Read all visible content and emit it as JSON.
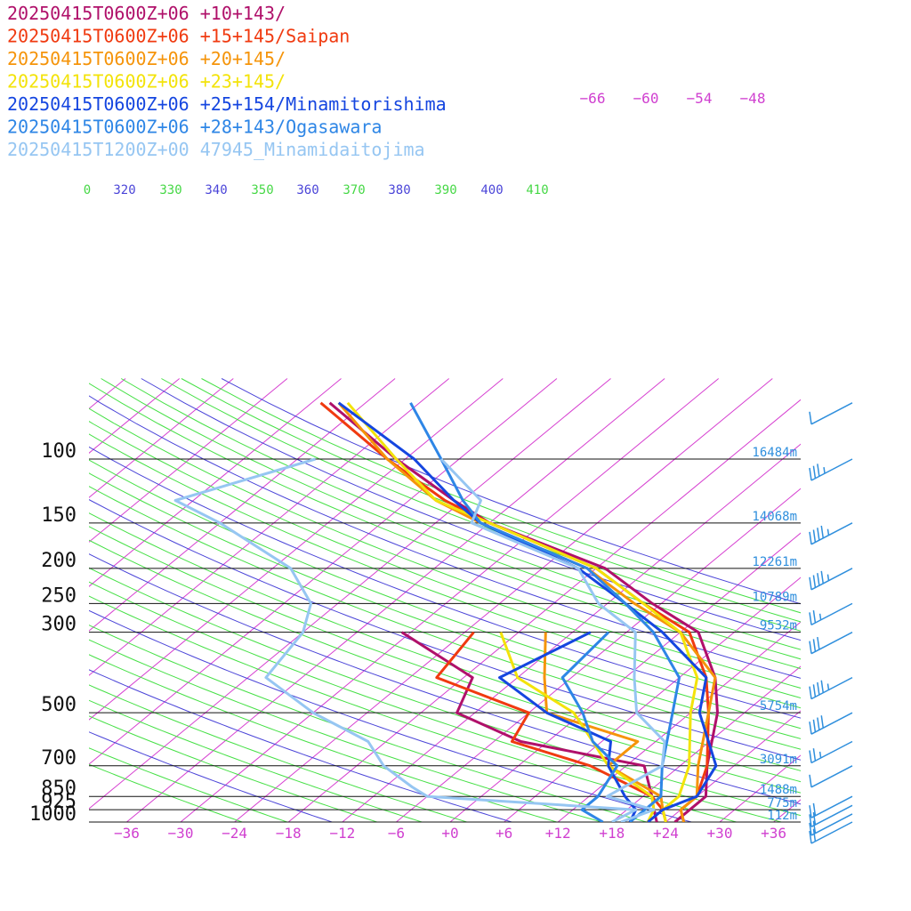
{
  "chart_data": {
    "type": "line",
    "title": "",
    "xlabel": "",
    "ylabel": "",
    "y_scale": "log-pressure",
    "ylim_hpa": [
      1000,
      70
    ],
    "xlim": [
      -40,
      40
    ],
    "skew_per_decade": 49,
    "pressure_levels": [
      {
        "p": 100,
        "label": "100",
        "height": "16484m"
      },
      {
        "p": 150,
        "label": "150",
        "height": "14068m"
      },
      {
        "p": 200,
        "label": "200",
        "height": "12261m"
      },
      {
        "p": 250,
        "label": "250",
        "height": "10789m"
      },
      {
        "p": 300,
        "label": "300",
        "height": "9532m"
      },
      {
        "p": 500,
        "label": "500",
        "height": "5754m"
      },
      {
        "p": 700,
        "label": "700",
        "height": "3091m"
      },
      {
        "p": 850,
        "label": "850",
        "height": "1488m"
      },
      {
        "p": 925,
        "label": "925",
        "height": "775m"
      },
      {
        "p": 1000,
        "label": "1000",
        "height": "112m"
      }
    ],
    "temperature_ticks": [
      "−36",
      "−30",
      "−24",
      "−18",
      "−12",
      "−6",
      "+0",
      "+6",
      "+12",
      "+18",
      "+24",
      "+30",
      "+36"
    ],
    "temperature_tick_values": [
      -36,
      -30,
      -24,
      -18,
      -12,
      -6,
      0,
      6,
      12,
      18,
      24,
      30,
      36
    ],
    "theta_labels": [
      "0",
      "320",
      "330",
      "340",
      "350",
      "360",
      "370",
      "380",
      "390",
      "400",
      "410"
    ],
    "mixing_labels": [
      "−66",
      "−60",
      "−54",
      "−48"
    ],
    "colors": {
      "isotherm": "#d63fd0",
      "theta_green": "#46e046",
      "theta_blue": "#4b45d8",
      "pressure_line": "#111111",
      "barb": "#2f8fdd"
    },
    "series": [
      {
        "name": "20250415T0600Z+06 +10+143/",
        "color": "#b0106a",
        "temp": [
          [
            1000,
            25
          ],
          [
            925,
            25
          ],
          [
            850,
            25
          ],
          [
            700,
            21
          ],
          [
            500,
            15
          ],
          [
            400,
            10
          ],
          [
            300,
            2
          ],
          [
            250,
            -7
          ],
          [
            200,
            -17
          ],
          [
            150,
            -36
          ],
          [
            130,
            -43
          ],
          [
            100,
            -55
          ],
          [
            70,
            -70
          ]
        ],
        "dew": [
          [
            1000,
            23
          ],
          [
            925,
            21
          ],
          [
            850,
            19
          ],
          [
            700,
            14
          ],
          [
            600,
            -3
          ],
          [
            500,
            -14
          ],
          [
            400,
            -17
          ],
          [
            300,
            -31
          ]
        ]
      },
      {
        "name": "20250415T0600Z+06 +15+145/Saipan",
        "color": "#f03a10",
        "temp": [
          [
            1000,
            26
          ],
          [
            925,
            24
          ],
          [
            850,
            24
          ],
          [
            700,
            21
          ],
          [
            500,
            14
          ],
          [
            400,
            9
          ],
          [
            300,
            1
          ],
          [
            250,
            -8
          ],
          [
            200,
            -18
          ],
          [
            150,
            -36
          ],
          [
            130,
            -44
          ],
          [
            100,
            -56
          ],
          [
            70,
            -71
          ]
        ],
        "dew": [
          [
            1000,
            24
          ],
          [
            925,
            22
          ],
          [
            850,
            19
          ],
          [
            700,
            8
          ],
          [
            600,
            -4
          ],
          [
            500,
            -6
          ],
          [
            400,
            -21
          ],
          [
            300,
            -23
          ]
        ]
      },
      {
        "name": "20250415T0600Z+06 +20+145/",
        "color": "#f5940a",
        "temp": [
          [
            1000,
            26
          ],
          [
            925,
            24
          ],
          [
            850,
            24
          ],
          [
            700,
            20
          ],
          [
            500,
            14
          ],
          [
            400,
            10
          ],
          [
            300,
            0
          ],
          [
            250,
            -9
          ],
          [
            200,
            -19
          ],
          [
            150,
            -37
          ],
          [
            130,
            -45
          ],
          [
            100,
            -56
          ],
          [
            70,
            -69
          ]
        ],
        "dew": [
          [
            1000,
            24
          ],
          [
            925,
            22
          ],
          [
            850,
            20
          ],
          [
            700,
            10
          ],
          [
            600,
            10
          ],
          [
            500,
            -4
          ],
          [
            400,
            -9
          ],
          [
            300,
            -15
          ]
        ]
      },
      {
        "name": "20250415T0600Z+06 +23+145/",
        "color": "#f3e30a",
        "temp": [
          [
            1000,
            24
          ],
          [
            925,
            22
          ],
          [
            850,
            22
          ],
          [
            700,
            19
          ],
          [
            500,
            12
          ],
          [
            400,
            8
          ],
          [
            300,
            0
          ],
          [
            250,
            -8
          ],
          [
            200,
            -18
          ],
          [
            150,
            -36
          ],
          [
            130,
            -45
          ],
          [
            100,
            -55
          ],
          [
            70,
            -68
          ]
        ],
        "dew": [
          [
            1000,
            22
          ],
          [
            925,
            21
          ],
          [
            850,
            19
          ],
          [
            700,
            10
          ],
          [
            600,
            5
          ],
          [
            500,
            -1
          ],
          [
            400,
            -12
          ],
          [
            300,
            -20
          ]
        ]
      },
      {
        "name": "20250415T0600Z+06 +25+154/Minamitorishima",
        "color": "#1546e0",
        "temp": [
          [
            1000,
            22
          ],
          [
            925,
            22
          ],
          [
            850,
            24
          ],
          [
            700,
            22
          ],
          [
            500,
            13
          ],
          [
            400,
            9
          ],
          [
            300,
            -2
          ],
          [
            250,
            -10
          ],
          [
            200,
            -20
          ],
          [
            150,
            -37
          ],
          [
            130,
            -43
          ],
          [
            100,
            -53
          ],
          [
            70,
            -69
          ]
        ],
        "dew": [
          [
            1000,
            20
          ],
          [
            925,
            19
          ],
          [
            850,
            16
          ],
          [
            700,
            10
          ],
          [
            600,
            7
          ],
          [
            500,
            -4
          ],
          [
            400,
            -14
          ],
          [
            300,
            -10
          ]
        ]
      },
      {
        "name": "20250415T0600Z+06 +28+143/Ogasawara",
        "color": "#2e86e6",
        "temp": [
          [
            1000,
            20
          ],
          [
            925,
            20
          ],
          [
            850,
            20
          ],
          [
            700,
            16
          ],
          [
            500,
            10
          ],
          [
            400,
            6
          ],
          [
            300,
            -3
          ],
          [
            250,
            -10
          ],
          [
            200,
            -19
          ],
          [
            150,
            -37
          ],
          [
            130,
            -42
          ],
          [
            100,
            -50
          ],
          [
            70,
            -61
          ]
        ],
        "dew": [
          [
            1000,
            17
          ],
          [
            925,
            13
          ],
          [
            850,
            13
          ],
          [
            700,
            11
          ],
          [
            600,
            5
          ],
          [
            500,
            0
          ],
          [
            400,
            -7
          ],
          [
            300,
            -8
          ]
        ]
      },
      {
        "name": "20250415T1200Z+00 47945_Minamidaitojima",
        "color": "#96c6f2",
        "temp": [
          [
            1000,
            19
          ],
          [
            925,
            21
          ],
          [
            850,
            14
          ],
          [
            700,
            16
          ],
          [
            600,
            13
          ],
          [
            500,
            6
          ],
          [
            400,
            1
          ],
          [
            300,
            -5
          ],
          [
            250,
            -13
          ],
          [
            200,
            -20
          ],
          [
            150,
            -38
          ],
          [
            130,
            -40
          ],
          [
            100,
            -50
          ]
        ],
        "dew": [
          [
            1000,
            18
          ],
          [
            925,
            19
          ],
          [
            850,
            -6
          ],
          [
            800,
            -9
          ],
          [
            700,
            -15
          ],
          [
            600,
            -20
          ],
          [
            500,
            -30
          ],
          [
            400,
            -40
          ],
          [
            300,
            -42
          ],
          [
            250,
            -45
          ],
          [
            200,
            -52
          ],
          [
            150,
            -66
          ],
          [
            130,
            -74
          ],
          [
            100,
            -64
          ]
        ]
      }
    ],
    "wind_barbs": [
      {
        "p": 70,
        "speed_kt": 10
      },
      {
        "p": 100,
        "speed_kt": 35
      },
      {
        "p": 150,
        "speed_kt": 45
      },
      {
        "p": 200,
        "speed_kt": 45
      },
      {
        "p": 250,
        "speed_kt": 25
      },
      {
        "p": 300,
        "speed_kt": 30
      },
      {
        "p": 400,
        "speed_kt": 45
      },
      {
        "p": 500,
        "speed_kt": 40
      },
      {
        "p": 600,
        "speed_kt": 25
      },
      {
        "p": 700,
        "speed_kt": 10
      },
      {
        "p": 850,
        "speed_kt": 20
      },
      {
        "p": 900,
        "speed_kt": 20
      },
      {
        "p": 950,
        "speed_kt": 20
      },
      {
        "p": 1000,
        "speed_kt": 20
      }
    ]
  }
}
